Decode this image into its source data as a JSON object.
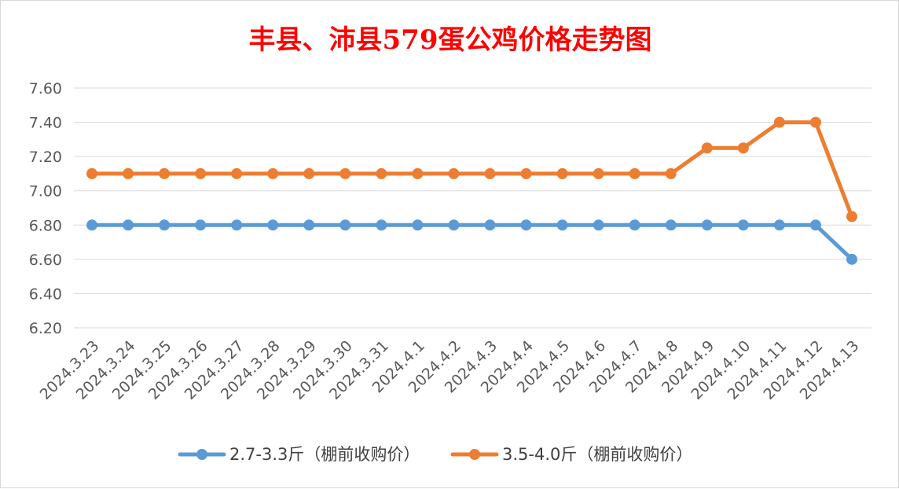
{
  "chart_data": {
    "type": "line",
    "title": "丰县、沛县579蛋公鸡价格走势图",
    "categories": [
      "2024.3.23",
      "2024.3.24",
      "2024.3.25",
      "2024.3.26",
      "2024.3.27",
      "2024.3.28",
      "2024.3.29",
      "2024.3.30",
      "2024.3.31",
      "2024.4.1",
      "2024.4.2",
      "2024.4.3",
      "2024.4.4",
      "2024.4.5",
      "2024.4.6",
      "2024.4.7",
      "2024.4.8",
      "2024.4.9",
      "2024.4.10",
      "2024.4.11",
      "2024.4.12",
      "2024.4.13"
    ],
    "series": [
      {
        "name": "2.7-3.3斤（棚前收购价）",
        "color": "#5b9bd5",
        "values": [
          6.8,
          6.8,
          6.8,
          6.8,
          6.8,
          6.8,
          6.8,
          6.8,
          6.8,
          6.8,
          6.8,
          6.8,
          6.8,
          6.8,
          6.8,
          6.8,
          6.8,
          6.8,
          6.8,
          6.8,
          6.8,
          6.6
        ]
      },
      {
        "name": "3.5-4.0斤（棚前收购价）",
        "color": "#ed7d31",
        "values": [
          7.1,
          7.1,
          7.1,
          7.1,
          7.1,
          7.1,
          7.1,
          7.1,
          7.1,
          7.1,
          7.1,
          7.1,
          7.1,
          7.1,
          7.1,
          7.1,
          7.1,
          7.25,
          7.25,
          7.4,
          7.4,
          6.85
        ]
      }
    ],
    "yticks": [
      "6.20",
      "6.40",
      "6.60",
      "6.80",
      "7.00",
      "7.20",
      "7.40",
      "7.60"
    ],
    "ylim": [
      6.2,
      7.6
    ],
    "grid": true,
    "legend": "bottom"
  }
}
